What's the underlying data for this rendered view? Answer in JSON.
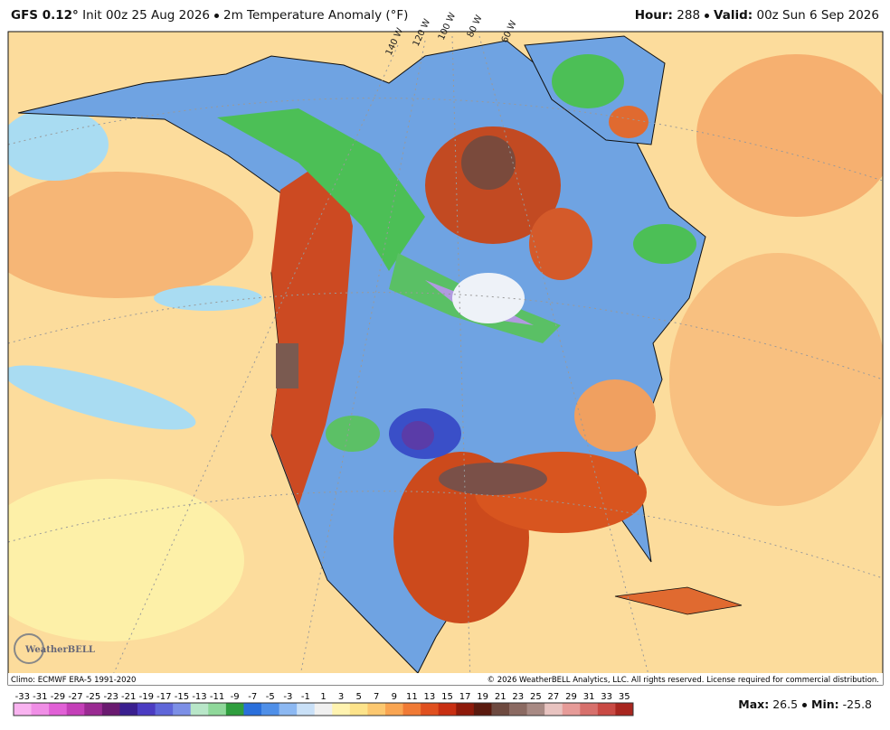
{
  "header": {
    "model": "GFS 0.12°",
    "init": "Init 00z 25 Aug 2026",
    "field": "2m Temperature Anomaly (°F)",
    "hour_label": "Hour:",
    "hour": "288",
    "valid_label": "Valid:",
    "valid": "00z Sun 6 Sep 2026"
  },
  "map": {
    "longitude_labels": [
      "140 W",
      "120 W",
      "100 W",
      "80 W",
      "60 W"
    ],
    "logo": "WeatherBELL"
  },
  "footer": {
    "climo": "Climo: ECMWF ERA-5 1991-2020",
    "copyright": "© 2026 WeatherBELL Analytics, LLC. All rights reserved. License required for commercial distribution."
  },
  "colorbar": {
    "labels": [
      -33,
      -31,
      -29,
      -27,
      -25,
      -23,
      -21,
      -19,
      -17,
      -15,
      -13,
      -11,
      -9,
      -7,
      -5,
      -3,
      -1,
      1,
      3,
      5,
      7,
      9,
      11,
      13,
      15,
      17,
      19,
      21,
      23,
      25,
      27,
      29,
      31,
      33,
      35
    ],
    "colors": [
      "#f9b3f0",
      "#f08ee6",
      "#e160d6",
      "#c43fb8",
      "#9a2a92",
      "#6a1a70",
      "#3a1f8f",
      "#4b3cc2",
      "#5f66d9",
      "#7c8fe6",
      "#b8e6c8",
      "#8fd89a",
      "#2f9e3e",
      "#2a6fdb",
      "#4f8fe8",
      "#8cb8f2",
      "#c9e0f7",
      "#f0f0f0",
      "#fff3b0",
      "#fde38a",
      "#fcc870",
      "#f9a552",
      "#f07a35",
      "#e0501f",
      "#c82f12",
      "#8e1a0a",
      "#5a1a0e",
      "#6e4a40",
      "#8b6a62",
      "#a88a84",
      "#e8c3c0",
      "#e69b98",
      "#d7706c",
      "#c94a44",
      "#a8261f"
    ]
  },
  "stats": {
    "max_label": "Max:",
    "max": 26.5,
    "min_label": "Min:",
    "min": -25.8
  }
}
